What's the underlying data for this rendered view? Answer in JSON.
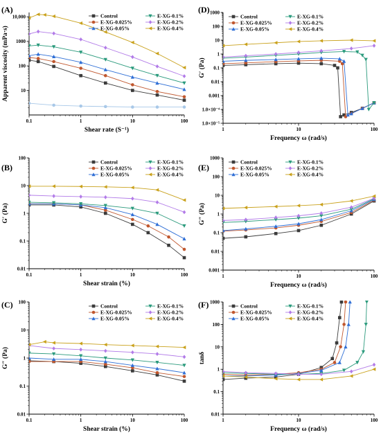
{
  "series_styles": [
    {
      "name": "Control",
      "color": "#3b3b3b",
      "marker": "square"
    },
    {
      "name": "E-XG-0.025%",
      "color": "#c0572e",
      "marker": "circle"
    },
    {
      "name": "E-XG-0.05%",
      "color": "#2f6fd6",
      "marker": "triangle-up"
    },
    {
      "name": "E-XG-0.1%",
      "color": "#2a9a7c",
      "marker": "triangle-down"
    },
    {
      "name": "E-XG-0.2%",
      "color": "#b27be8",
      "marker": "diamond"
    },
    {
      "name": "E-XG-0.4%",
      "color": "#c9a11b",
      "marker": "triangle-left"
    }
  ],
  "chart_data": [
    {
      "panel": "(A)",
      "type": "line",
      "xscale": "log",
      "yscale": "log",
      "xlabel": "Shear rate (S⁻¹)",
      "ylabel": "Apparent viscosity (mPa·s)",
      "xlim": [
        0.1,
        100
      ],
      "ylim": [
        1,
        15000
      ],
      "xticks": [
        0.1,
        1,
        10,
        100
      ],
      "xtick_labels": [
        "0.1",
        "1",
        "10",
        "100"
      ],
      "yticks": [
        10,
        100,
        1000,
        10000
      ],
      "ytick_labels": [
        "10",
        "100",
        "1000",
        "10,000"
      ],
      "series": [
        {
          "name": "Control",
          "x": [
            0.1,
            0.15,
            0.3,
            1,
            3,
            10,
            30,
            100
          ],
          "y": [
            170,
            150,
            95,
            40,
            20,
            10,
            6.5,
            4
          ]
        },
        {
          "name": "E-XG-0.025%",
          "x": [
            0.1,
            0.15,
            0.3,
            1,
            3,
            10,
            30,
            100
          ],
          "y": [
            220,
            200,
            150,
            80,
            40,
            17,
            9,
            5.5
          ]
        },
        {
          "name": "E-XG-0.05%",
          "x": [
            0.1,
            0.15,
            0.3,
            1,
            3,
            10,
            30,
            100
          ],
          "y": [
            260,
            300,
            240,
            140,
            70,
            35,
            20,
            11
          ]
        },
        {
          "name": "E-XG-0.1%",
          "x": [
            0.1,
            0.15,
            0.3,
            1,
            3,
            10,
            30,
            100
          ],
          "y": [
            650,
            700,
            600,
            360,
            180,
            80,
            40,
            20
          ]
        },
        {
          "name": "E-XG-0.2%",
          "x": [
            0.1,
            0.15,
            0.3,
            1,
            3,
            10,
            30,
            100
          ],
          "y": [
            2000,
            2500,
            2100,
            1200,
            550,
            230,
            95,
            38
          ]
        },
        {
          "name": "E-XG-0.4%",
          "x": [
            0.1,
            0.15,
            0.2,
            0.3,
            1,
            3,
            10,
            30,
            100
          ],
          "y": [
            9000,
            12500,
            12000,
            10500,
            5500,
            2400,
            900,
            320,
            85
          ]
        }
      ],
      "extra_lines": [
        {
          "color": "#a8c8e8",
          "x": [
            0.1,
            0.3,
            1,
            3,
            10,
            30,
            100
          ],
          "y": [
            3,
            2.5,
            2.3,
            2.2,
            2.1,
            2.1,
            2.1
          ]
        }
      ],
      "legend": {
        "cols": 2,
        "placement": "top-right"
      }
    },
    {
      "panel": "(D)",
      "type": "line",
      "xscale": "log",
      "yscale": "log",
      "xlabel": "Frequency ω (rad/s)",
      "ylabel": "G′ (Pa)",
      "xlim": [
        1,
        100
      ],
      "ylim": [
        1e-05,
        1000
      ],
      "xticks": [
        1,
        10,
        100
      ],
      "xtick_labels": [
        "1",
        "10",
        "100"
      ],
      "yticks": [
        1e-05,
        0.0001,
        0.001,
        0.01,
        0.1,
        1,
        10,
        100,
        1000
      ],
      "ytick_labels": [
        "1.0×10⁻⁵",
        "1.0×10⁻⁴",
        "0.001",
        "0.01",
        "0.1",
        "1",
        "10",
        "100",
        "1000"
      ],
      "series": [
        {
          "name": "Control",
          "x": [
            1,
            2,
            5,
            10,
            20,
            30,
            33,
            36,
            40,
            50,
            70,
            100
          ],
          "y": [
            0.15,
            0.17,
            0.2,
            0.22,
            0.2,
            0.15,
            0.1,
            3e-05,
            4e-05,
            6e-05,
            0.00012,
            0.0003
          ]
        },
        {
          "name": "E-XG-0.025%",
          "x": [
            1,
            2,
            5,
            10,
            20,
            35,
            38,
            42,
            50,
            70,
            100
          ],
          "y": [
            0.2,
            0.23,
            0.28,
            0.32,
            0.35,
            0.3,
            0.2,
            3e-05,
            5e-05,
            0.00012,
            0.0003
          ]
        },
        {
          "name": "E-XG-0.05%",
          "x": [
            1,
            2,
            5,
            10,
            20,
            35,
            40,
            45,
            50,
            70,
            100
          ],
          "y": [
            0.3,
            0.35,
            0.4,
            0.45,
            0.5,
            0.45,
            0.3,
            4e-05,
            5e-05,
            0.00012,
            0.0003
          ]
        },
        {
          "name": "E-XG-0.1%",
          "x": [
            1,
            2,
            5,
            10,
            20,
            40,
            60,
            70,
            78,
            85,
            100
          ],
          "y": [
            0.5,
            0.6,
            0.8,
            1,
            1.3,
            1.5,
            1.4,
            0.8,
            0.4,
            0.0001,
            0.0003
          ]
        },
        {
          "name": "E-XG-0.2%",
          "x": [
            1,
            2,
            5,
            10,
            20,
            50,
            100
          ],
          "y": [
            0.6,
            0.75,
            1,
            1.3,
            1.7,
            2.5,
            4
          ]
        },
        {
          "name": "E-XG-0.4%",
          "x": [
            1,
            2,
            5,
            10,
            20,
            50,
            100
          ],
          "y": [
            4,
            5,
            6.5,
            8,
            9,
            10,
            9
          ]
        }
      ],
      "legend": {
        "cols": 2,
        "placement": "top-left"
      }
    },
    {
      "panel": "(B)",
      "type": "line",
      "xscale": "log",
      "yscale": "log",
      "xlabel": "Shear strain (%)",
      "ylabel": "G′ (Pa)",
      "xlim": [
        0.1,
        100
      ],
      "ylim": [
        0.01,
        100
      ],
      "xticks": [
        0.1,
        1,
        10,
        100
      ],
      "xtick_labels": [
        "0.1",
        "1",
        "10",
        "100"
      ],
      "yticks": [
        0.01,
        0.1,
        1,
        10,
        100
      ],
      "ytick_labels": [
        "0.01",
        "0.1",
        "1",
        "10",
        "100"
      ],
      "series": [
        {
          "name": "Control",
          "x": [
            0.1,
            0.3,
            1,
            3,
            10,
            20,
            50,
            100
          ],
          "y": [
            2.0,
            2.0,
            1.7,
            1.0,
            0.4,
            0.2,
            0.07,
            0.025
          ]
        },
        {
          "name": "E-XG-0.025%",
          "x": [
            0.1,
            0.3,
            1,
            3,
            10,
            20,
            50,
            100
          ],
          "y": [
            2.2,
            2.2,
            2.0,
            1.3,
            0.6,
            0.35,
            0.14,
            0.05
          ]
        },
        {
          "name": "E-XG-0.05%",
          "x": [
            0.1,
            0.3,
            1,
            3,
            10,
            30,
            100
          ],
          "y": [
            2.2,
            2.2,
            2.0,
            1.6,
            0.9,
            0.4,
            0.12
          ]
        },
        {
          "name": "E-XG-0.1%",
          "x": [
            0.1,
            0.3,
            1,
            3,
            10,
            30,
            100
          ],
          "y": [
            2.5,
            2.4,
            2.2,
            1.9,
            1.5,
            1.0,
            0.35
          ]
        },
        {
          "name": "E-XG-0.2%",
          "x": [
            0.1,
            0.3,
            1,
            3,
            10,
            30,
            100
          ],
          "y": [
            4.5,
            4.2,
            4.0,
            3.8,
            3.4,
            2.5,
            1.1
          ]
        },
        {
          "name": "E-XG-0.4%",
          "x": [
            0.1,
            0.3,
            1,
            3,
            10,
            30,
            100
          ],
          "y": [
            9.5,
            9.5,
            9.3,
            9.0,
            8.5,
            7.0,
            3.0
          ]
        }
      ],
      "legend": {
        "cols": 2,
        "placement": "top-right"
      }
    },
    {
      "panel": "(E)",
      "type": "line",
      "xscale": "log",
      "yscale": "log",
      "xlabel": "Frequency ω (rad/s)",
      "ylabel": "G″ (Pa)",
      "xlim": [
        1,
        100
      ],
      "ylim": [
        0.001,
        1000
      ],
      "xticks": [
        1,
        10,
        100
      ],
      "xtick_labels": [
        "1",
        "10",
        "100"
      ],
      "yticks": [
        0.001,
        0.01,
        0.1,
        1,
        10,
        100,
        1000
      ],
      "ytick_labels": [
        "0.001",
        "0.01",
        "0.1",
        "1",
        "10",
        "100",
        "1000"
      ],
      "series": [
        {
          "name": "Control",
          "x": [
            1,
            2,
            5,
            10,
            20,
            50,
            100
          ],
          "y": [
            0.05,
            0.06,
            0.09,
            0.13,
            0.25,
            1.0,
            5
          ]
        },
        {
          "name": "E-XG-0.025%",
          "x": [
            1,
            2,
            5,
            10,
            20,
            50,
            100
          ],
          "y": [
            0.12,
            0.14,
            0.18,
            0.25,
            0.4,
            1.2,
            5.5
          ]
        },
        {
          "name": "E-XG-0.05%",
          "x": [
            1,
            2,
            5,
            10,
            20,
            50,
            100
          ],
          "y": [
            0.13,
            0.16,
            0.22,
            0.3,
            0.5,
            1.5,
            6
          ]
        },
        {
          "name": "E-XG-0.1%",
          "x": [
            1,
            2,
            5,
            10,
            20,
            50,
            100
          ],
          "y": [
            0.35,
            0.4,
            0.5,
            0.6,
            0.8,
            1.8,
            6.5
          ]
        },
        {
          "name": "E-XG-0.2%",
          "x": [
            1,
            2,
            5,
            10,
            20,
            50,
            100
          ],
          "y": [
            0.45,
            0.5,
            0.65,
            0.8,
            1.1,
            2.3,
            7
          ]
        },
        {
          "name": "E-XG-0.4%",
          "x": [
            1,
            2,
            5,
            10,
            20,
            50,
            100
          ],
          "y": [
            2.0,
            2.2,
            2.5,
            2.8,
            3.2,
            5,
            9
          ]
        }
      ],
      "legend": {
        "cols": 2,
        "placement": "top-left"
      }
    },
    {
      "panel": "(C)",
      "type": "line",
      "xscale": "log",
      "yscale": "log",
      "xlabel": "Shear strain (%)",
      "ylabel": "G″ (Pa)",
      "xlim": [
        0.1,
        100
      ],
      "ylim": [
        0.01,
        100
      ],
      "xticks": [
        0.1,
        1,
        10,
        100
      ],
      "xtick_labels": [
        "0.1",
        "1",
        "10",
        "100"
      ],
      "yticks": [
        0.01,
        0.1,
        1,
        10,
        100
      ],
      "ytick_labels": [
        "0.01",
        "0.1",
        "1",
        "10",
        "100"
      ],
      "series": [
        {
          "name": "Control",
          "x": [
            0.1,
            0.3,
            1,
            3,
            10,
            30,
            100
          ],
          "y": [
            0.8,
            0.75,
            0.65,
            0.5,
            0.35,
            0.25,
            0.15
          ]
        },
        {
          "name": "E-XG-0.025%",
          "x": [
            0.1,
            0.3,
            1,
            3,
            10,
            30,
            100
          ],
          "y": [
            0.75,
            0.75,
            0.75,
            0.6,
            0.45,
            0.3,
            0.22
          ]
        },
        {
          "name": "E-XG-0.05%",
          "x": [
            0.1,
            0.3,
            1,
            3,
            10,
            30,
            100
          ],
          "y": [
            1.0,
            0.9,
            0.9,
            0.75,
            0.55,
            0.42,
            0.3
          ]
        },
        {
          "name": "E-XG-0.1%",
          "x": [
            0.1,
            0.3,
            1,
            3,
            10,
            30,
            100
          ],
          "y": [
            1.5,
            1.4,
            1.2,
            1.0,
            0.85,
            0.7,
            0.55
          ]
        },
        {
          "name": "E-XG-0.2%",
          "x": [
            0.1,
            0.3,
            1,
            3,
            10,
            30,
            100
          ],
          "y": [
            2.8,
            2.2,
            2.0,
            1.8,
            1.6,
            1.4,
            1.1
          ]
        },
        {
          "name": "E-XG-0.4%",
          "x": [
            0.1,
            0.2,
            0.3,
            1,
            3,
            10,
            30,
            100
          ],
          "y": [
            3.0,
            3.8,
            3.5,
            3.3,
            3.0,
            2.8,
            2.6,
            2.4
          ]
        }
      ],
      "legend": {
        "cols": 2,
        "placement": "top-right"
      }
    },
    {
      "panel": "(F)",
      "type": "line",
      "xscale": "log",
      "yscale": "log",
      "xlabel": "Frequency ω (rad/s)",
      "ylabel": "tanδ",
      "xlim": [
        1,
        100
      ],
      "ylim": [
        0.01,
        1000
      ],
      "xticks": [
        1,
        10,
        100
      ],
      "xtick_labels": [
        "1",
        "10",
        "100"
      ],
      "yticks": [
        0.01,
        0.1,
        1,
        10,
        100,
        1000
      ],
      "ytick_labels": [
        "0.01",
        "0.1",
        "1",
        "10",
        "100",
        "1000"
      ],
      "series": [
        {
          "name": "Control",
          "x": [
            1,
            2,
            5,
            10,
            20,
            28,
            32,
            35,
            37
          ],
          "y": [
            0.35,
            0.4,
            0.45,
            0.6,
            1.2,
            3,
            15,
            200,
            1000
          ]
        },
        {
          "name": "E-XG-0.025%",
          "x": [
            1,
            2,
            5,
            10,
            20,
            30,
            36,
            40,
            42
          ],
          "y": [
            0.6,
            0.55,
            0.6,
            0.7,
            1.0,
            2.0,
            10,
            100,
            1000
          ]
        },
        {
          "name": "E-XG-0.05%",
          "x": [
            1,
            2,
            5,
            10,
            20,
            35,
            42,
            46,
            48
          ],
          "y": [
            0.5,
            0.5,
            0.55,
            0.65,
            0.9,
            2.0,
            10,
            100,
            1000
          ]
        },
        {
          "name": "E-XG-0.1%",
          "x": [
            1,
            2,
            5,
            10,
            20,
            40,
            60,
            72,
            78,
            80
          ],
          "y": [
            0.7,
            0.65,
            0.6,
            0.6,
            0.65,
            0.9,
            2,
            6,
            100,
            1000
          ]
        },
        {
          "name": "E-XG-0.2%",
          "x": [
            1,
            2,
            5,
            10,
            20,
            50,
            100
          ],
          "y": [
            0.8,
            0.7,
            0.65,
            0.6,
            0.6,
            0.8,
            1.6
          ]
        },
        {
          "name": "E-XG-0.4%",
          "x": [
            1,
            2,
            5,
            10,
            20,
            50,
            100
          ],
          "y": [
            0.5,
            0.45,
            0.38,
            0.35,
            0.35,
            0.5,
            1.0
          ]
        }
      ],
      "legend": {
        "cols": 2,
        "placement": "top-left"
      }
    }
  ]
}
